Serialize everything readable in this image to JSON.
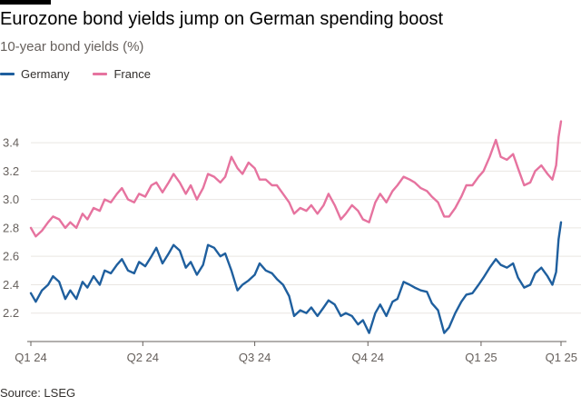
{
  "header": {
    "title": "Eurozone bond yields jump on German spending boost",
    "subtitle": "10-year bond yields (%)"
  },
  "legend": [
    {
      "name": "Germany",
      "color": "#1f5f9e"
    },
    {
      "name": "France",
      "color": "#e6739f"
    }
  ],
  "source": "Source: LSEG",
  "chart_data": {
    "type": "line",
    "title": "Eurozone bond yields jump on German spending boost",
    "subtitle": "10-year bond yields (%)",
    "xlabel": "",
    "ylabel": "10-year bond yields (%)",
    "x_ticks": [
      {
        "label": "Q1 24",
        "date": "2024-01-01"
      },
      {
        "label": "Q2 24",
        "date": "2024-04-01"
      },
      {
        "label": "Q3 24",
        "date": "2024-07-01"
      },
      {
        "label": "Q4 24",
        "date": "2024-10-01"
      },
      {
        "label": "Q1 25",
        "date": "2025-01-01"
      },
      {
        "label": "Q1 25",
        "date": "2025-03-07"
      }
    ],
    "y_ticks": [
      2.2,
      2.4,
      2.6,
      2.8,
      3.0,
      3.2,
      3.4
    ],
    "ylim": [
      2.0,
      3.65
    ],
    "xlim": [
      "2024-01-01",
      "2025-03-07"
    ],
    "grid": true,
    "legend_position": "top-left",
    "series": [
      {
        "name": "Germany",
        "color": "#1f5f9e",
        "points": [
          [
            "2024-01-01",
            2.34
          ],
          [
            "2024-01-05",
            2.28
          ],
          [
            "2024-01-10",
            2.36
          ],
          [
            "2024-01-15",
            2.4
          ],
          [
            "2024-01-19",
            2.46
          ],
          [
            "2024-01-24",
            2.42
          ],
          [
            "2024-01-29",
            2.3
          ],
          [
            "2024-02-02",
            2.36
          ],
          [
            "2024-02-07",
            2.3
          ],
          [
            "2024-02-12",
            2.42
          ],
          [
            "2024-02-16",
            2.38
          ],
          [
            "2024-02-21",
            2.46
          ],
          [
            "2024-02-26",
            2.4
          ],
          [
            "2024-03-01",
            2.5
          ],
          [
            "2024-03-06",
            2.48
          ],
          [
            "2024-03-11",
            2.54
          ],
          [
            "2024-03-15",
            2.58
          ],
          [
            "2024-03-20",
            2.5
          ],
          [
            "2024-03-25",
            2.48
          ],
          [
            "2024-03-29",
            2.56
          ],
          [
            "2024-04-03",
            2.53
          ],
          [
            "2024-04-08",
            2.6
          ],
          [
            "2024-04-12",
            2.66
          ],
          [
            "2024-04-17",
            2.55
          ],
          [
            "2024-04-22",
            2.62
          ],
          [
            "2024-04-26",
            2.68
          ],
          [
            "2024-05-01",
            2.64
          ],
          [
            "2024-05-06",
            2.52
          ],
          [
            "2024-05-10",
            2.56
          ],
          [
            "2024-05-15",
            2.47
          ],
          [
            "2024-05-20",
            2.54
          ],
          [
            "2024-05-24",
            2.68
          ],
          [
            "2024-05-29",
            2.66
          ],
          [
            "2024-06-03",
            2.6
          ],
          [
            "2024-06-07",
            2.62
          ],
          [
            "2024-06-12",
            2.5
          ],
          [
            "2024-06-17",
            2.36
          ],
          [
            "2024-06-21",
            2.4
          ],
          [
            "2024-06-26",
            2.43
          ],
          [
            "2024-07-01",
            2.47
          ],
          [
            "2024-07-05",
            2.55
          ],
          [
            "2024-07-10",
            2.5
          ],
          [
            "2024-07-15",
            2.48
          ],
          [
            "2024-07-19",
            2.44
          ],
          [
            "2024-07-24",
            2.4
          ],
          [
            "2024-07-29",
            2.32
          ],
          [
            "2024-08-02",
            2.18
          ],
          [
            "2024-08-07",
            2.22
          ],
          [
            "2024-08-12",
            2.2
          ],
          [
            "2024-08-16",
            2.24
          ],
          [
            "2024-08-21",
            2.18
          ],
          [
            "2024-08-26",
            2.24
          ],
          [
            "2024-08-30",
            2.29
          ],
          [
            "2024-09-04",
            2.26
          ],
          [
            "2024-09-09",
            2.18
          ],
          [
            "2024-09-13",
            2.2
          ],
          [
            "2024-09-18",
            2.18
          ],
          [
            "2024-09-23",
            2.12
          ],
          [
            "2024-09-27",
            2.15
          ],
          [
            "2024-10-02",
            2.06
          ],
          [
            "2024-10-07",
            2.2
          ],
          [
            "2024-10-11",
            2.26
          ],
          [
            "2024-10-16",
            2.18
          ],
          [
            "2024-10-21",
            2.28
          ],
          [
            "2024-10-25",
            2.3
          ],
          [
            "2024-10-30",
            2.42
          ],
          [
            "2024-11-04",
            2.4
          ],
          [
            "2024-11-08",
            2.38
          ],
          [
            "2024-11-13",
            2.36
          ],
          [
            "2024-11-18",
            2.35
          ],
          [
            "2024-11-22",
            2.27
          ],
          [
            "2024-11-27",
            2.22
          ],
          [
            "2024-12-02",
            2.06
          ],
          [
            "2024-12-06",
            2.1
          ],
          [
            "2024-12-11",
            2.2
          ],
          [
            "2024-12-16",
            2.28
          ],
          [
            "2024-12-20",
            2.33
          ],
          [
            "2024-12-25",
            2.34
          ],
          [
            "2024-12-30",
            2.4
          ],
          [
            "2025-01-03",
            2.45
          ],
          [
            "2025-01-08",
            2.52
          ],
          [
            "2025-01-13",
            2.58
          ],
          [
            "2025-01-17",
            2.54
          ],
          [
            "2025-01-22",
            2.52
          ],
          [
            "2025-01-27",
            2.55
          ],
          [
            "2025-01-31",
            2.45
          ],
          [
            "2025-02-05",
            2.38
          ],
          [
            "2025-02-10",
            2.4
          ],
          [
            "2025-02-14",
            2.48
          ],
          [
            "2025-02-19",
            2.52
          ],
          [
            "2025-02-24",
            2.46
          ],
          [
            "2025-02-28",
            2.4
          ],
          [
            "2025-03-03",
            2.49
          ],
          [
            "2025-03-05",
            2.72
          ],
          [
            "2025-03-07",
            2.84
          ]
        ]
      },
      {
        "name": "France",
        "color": "#e6739f",
        "points": [
          [
            "2024-01-01",
            2.8
          ],
          [
            "2024-01-05",
            2.74
          ],
          [
            "2024-01-10",
            2.78
          ],
          [
            "2024-01-15",
            2.84
          ],
          [
            "2024-01-19",
            2.88
          ],
          [
            "2024-01-24",
            2.86
          ],
          [
            "2024-01-29",
            2.8
          ],
          [
            "2024-02-02",
            2.84
          ],
          [
            "2024-02-07",
            2.8
          ],
          [
            "2024-02-12",
            2.9
          ],
          [
            "2024-02-16",
            2.86
          ],
          [
            "2024-02-21",
            2.94
          ],
          [
            "2024-02-26",
            2.92
          ],
          [
            "2024-03-01",
            3.0
          ],
          [
            "2024-03-06",
            2.98
          ],
          [
            "2024-03-11",
            3.04
          ],
          [
            "2024-03-15",
            3.08
          ],
          [
            "2024-03-20",
            3.0
          ],
          [
            "2024-03-25",
            2.98
          ],
          [
            "2024-03-29",
            3.04
          ],
          [
            "2024-04-03",
            3.02
          ],
          [
            "2024-04-08",
            3.1
          ],
          [
            "2024-04-12",
            3.12
          ],
          [
            "2024-04-17",
            3.05
          ],
          [
            "2024-04-22",
            3.12
          ],
          [
            "2024-04-26",
            3.18
          ],
          [
            "2024-05-01",
            3.12
          ],
          [
            "2024-05-06",
            3.04
          ],
          [
            "2024-05-10",
            3.1
          ],
          [
            "2024-05-15",
            3.0
          ],
          [
            "2024-05-20",
            3.08
          ],
          [
            "2024-05-24",
            3.18
          ],
          [
            "2024-05-29",
            3.16
          ],
          [
            "2024-06-03",
            3.12
          ],
          [
            "2024-06-07",
            3.16
          ],
          [
            "2024-06-12",
            3.3
          ],
          [
            "2024-06-17",
            3.22
          ],
          [
            "2024-06-21",
            3.18
          ],
          [
            "2024-06-26",
            3.26
          ],
          [
            "2024-07-01",
            3.22
          ],
          [
            "2024-07-05",
            3.14
          ],
          [
            "2024-07-10",
            3.14
          ],
          [
            "2024-07-15",
            3.1
          ],
          [
            "2024-07-19",
            3.1
          ],
          [
            "2024-07-24",
            3.04
          ],
          [
            "2024-07-29",
            2.98
          ],
          [
            "2024-08-02",
            2.9
          ],
          [
            "2024-08-07",
            2.94
          ],
          [
            "2024-08-12",
            2.92
          ],
          [
            "2024-08-16",
            2.96
          ],
          [
            "2024-08-21",
            2.9
          ],
          [
            "2024-08-26",
            2.96
          ],
          [
            "2024-08-30",
            3.04
          ],
          [
            "2024-09-04",
            2.96
          ],
          [
            "2024-09-09",
            2.86
          ],
          [
            "2024-09-13",
            2.9
          ],
          [
            "2024-09-18",
            2.96
          ],
          [
            "2024-09-23",
            2.92
          ],
          [
            "2024-09-27",
            2.86
          ],
          [
            "2024-10-02",
            2.84
          ],
          [
            "2024-10-07",
            2.98
          ],
          [
            "2024-10-11",
            3.04
          ],
          [
            "2024-10-16",
            2.98
          ],
          [
            "2024-10-21",
            3.06
          ],
          [
            "2024-10-25",
            3.1
          ],
          [
            "2024-10-30",
            3.16
          ],
          [
            "2024-11-04",
            3.14
          ],
          [
            "2024-11-08",
            3.12
          ],
          [
            "2024-11-13",
            3.08
          ],
          [
            "2024-11-18",
            3.06
          ],
          [
            "2024-11-22",
            3.02
          ],
          [
            "2024-11-27",
            2.98
          ],
          [
            "2024-12-02",
            2.88
          ],
          [
            "2024-12-06",
            2.88
          ],
          [
            "2024-12-11",
            2.94
          ],
          [
            "2024-12-16",
            3.02
          ],
          [
            "2024-12-20",
            3.1
          ],
          [
            "2024-12-25",
            3.1
          ],
          [
            "2024-12-30",
            3.16
          ],
          [
            "2025-01-03",
            3.2
          ],
          [
            "2025-01-08",
            3.3
          ],
          [
            "2025-01-13",
            3.42
          ],
          [
            "2025-01-17",
            3.3
          ],
          [
            "2025-01-22",
            3.28
          ],
          [
            "2025-01-27",
            3.32
          ],
          [
            "2025-01-31",
            3.22
          ],
          [
            "2025-02-05",
            3.1
          ],
          [
            "2025-02-10",
            3.12
          ],
          [
            "2025-02-14",
            3.2
          ],
          [
            "2025-02-19",
            3.24
          ],
          [
            "2025-02-24",
            3.18
          ],
          [
            "2025-02-28",
            3.14
          ],
          [
            "2025-03-03",
            3.24
          ],
          [
            "2025-03-05",
            3.44
          ],
          [
            "2025-03-07",
            3.55
          ]
        ]
      }
    ]
  }
}
